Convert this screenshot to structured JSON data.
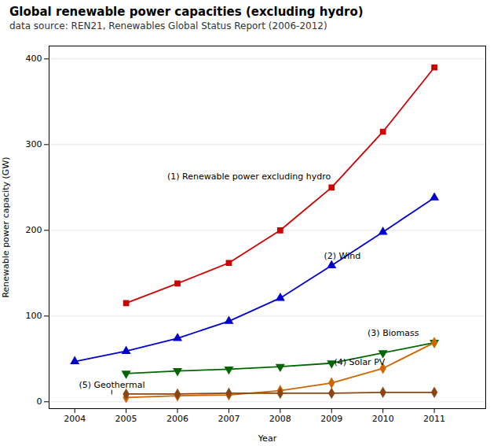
{
  "chart_data": {
    "type": "line",
    "title": "Global renewable power capacities (excluding hydro)",
    "subtitle": "data source: REN21, Renewables Global Status Report (2006-2012)",
    "xlabel": "Year",
    "ylabel": "Renewable power capacity (GW)",
    "x": [
      2004,
      2005,
      2006,
      2007,
      2008,
      2009,
      2010,
      2011
    ],
    "series": [
      {
        "name": "(1) Renewable power excluding hydro",
        "color": "#cc0000",
        "marker": "square",
        "values": [
          null,
          115,
          138,
          162,
          200,
          250,
          315,
          390
        ]
      },
      {
        "name": "(2) Wind",
        "color": "#0000cc",
        "marker": "triangle_up",
        "values": [
          47,
          59,
          74,
          94,
          121,
          159,
          198,
          238
        ]
      },
      {
        "name": "(3) Biomass",
        "color": "#006600",
        "marker": "triangle_down",
        "values": [
          null,
          33,
          36,
          38,
          41,
          45,
          57,
          69
        ]
      },
      {
        "name": "(4) Solar PV",
        "color": "#cc6600",
        "marker": "diamond",
        "values": [
          null,
          5,
          7,
          8,
          13,
          22,
          39,
          69
        ]
      },
      {
        "name": "(5) Geothermal",
        "color": "#8B4513",
        "marker": "diamond",
        "values": [
          null,
          9,
          9,
          10,
          10,
          10,
          11,
          11
        ]
      }
    ],
    "xlim": [
      2003.5,
      2012.0
    ],
    "ylim": [
      -8,
      415
    ],
    "xticks": [
      2004,
      2005,
      2006,
      2007,
      2008,
      2009,
      2010,
      2011
    ],
    "yticks": [
      0,
      100,
      200,
      300,
      400
    ],
    "grid": true,
    "annotations": [
      {
        "text": "(1) Renewable power excluding hydro",
        "x": 2005.8,
        "y": 263
      },
      {
        "text": "(2) Wind",
        "x": 2008.85,
        "y": 170
      },
      {
        "text": "(3) Biomass",
        "x": 2009.7,
        "y": 80
      },
      {
        "text": "(4) Solar PV",
        "x": 2009.05,
        "y": 46
      },
      {
        "text": "(5) Geothermal",
        "x": 2004.08,
        "y": 20,
        "arrow_x": 2004.72,
        "arrow_y": 9
      }
    ]
  }
}
